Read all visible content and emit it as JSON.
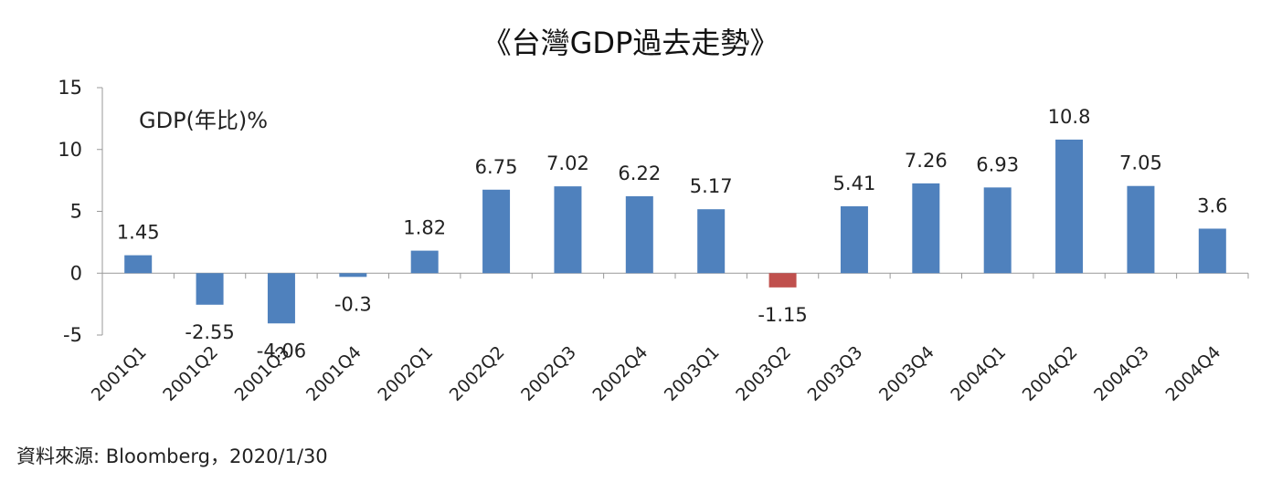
{
  "chart_data": {
    "type": "bar",
    "title": "《台灣GDP過去走勢》",
    "series_label": "GDP(年比)%",
    "categories": [
      "2001Q1",
      "2001Q2",
      "2001Q3",
      "2001Q4",
      "2002Q1",
      "2002Q2",
      "2002Q3",
      "2002Q4",
      "2003Q1",
      "2003Q2",
      "2003Q3",
      "2003Q4",
      "2004Q1",
      "2004Q2",
      "2004Q3",
      "2004Q4"
    ],
    "values": [
      1.45,
      -2.55,
      -4.06,
      -0.3,
      1.82,
      6.75,
      7.02,
      6.22,
      5.17,
      -1.15,
      5.41,
      7.26,
      6.93,
      10.8,
      7.05,
      3.6
    ],
    "data_labels": [
      "1.45",
      "-2.55",
      "-4.06",
      "-0.3",
      "1.82",
      "6.75",
      "7.02",
      "6.22",
      "5.17",
      "-1.15",
      "5.41",
      "7.26",
      "6.93",
      "10.8",
      "7.05",
      "3.6"
    ],
    "ylim": [
      -5,
      15
    ],
    "yticks": [
      -5,
      0,
      5,
      10,
      15
    ],
    "grid": false,
    "legend": "none",
    "bar_color": "#4f81bd",
    "highlight_color": "#c0504d",
    "highlight_index": 9
  },
  "source_note": "資料來源: Bloomberg，2020/1/30"
}
